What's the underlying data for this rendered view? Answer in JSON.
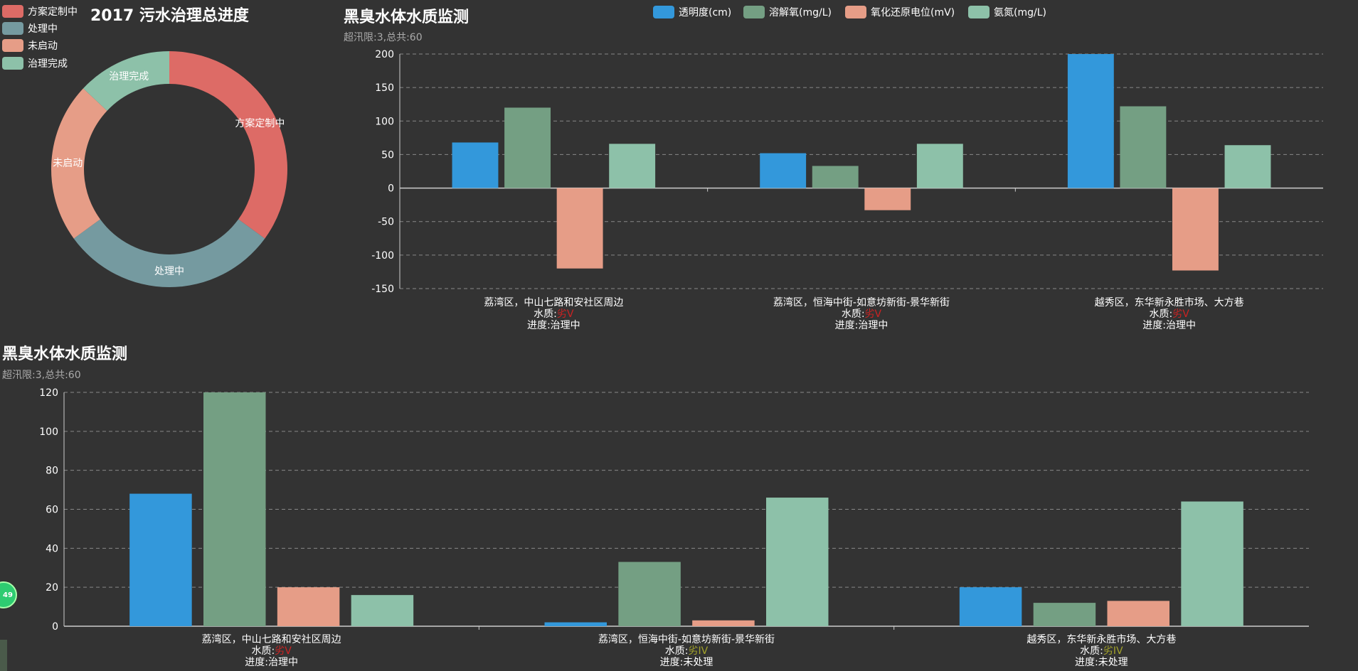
{
  "colors": {
    "series": [
      "#3398DB",
      "#749f83",
      "#e69d87",
      "#8dc1a9"
    ],
    "donut": [
      "#dd6b66",
      "#759aa0",
      "#e69d87",
      "#8dc1a9"
    ],
    "grid": "#888888",
    "axis": "#cccccc",
    "red": "#cc2222",
    "olive": "#a3a32a"
  },
  "donut_legend": [
    {
      "label": "方案定制中"
    },
    {
      "label": "处理中"
    },
    {
      "label": "未启动"
    },
    {
      "label": "治理完成"
    }
  ],
  "top_legend": [
    {
      "label": "透明度(cm)"
    },
    {
      "label": "溶解氧(mg/L)"
    },
    {
      "label": "氧化还原电位(mV)"
    },
    {
      "label": "氨氮(mg/L)"
    }
  ],
  "badge": "49",
  "chart_data": [
    {
      "type": "pie",
      "title": "2017 污水治理总进度",
      "donut": true,
      "slices": [
        {
          "label": "方案定制中",
          "value": 35
        },
        {
          "label": "处理中",
          "value": 30
        },
        {
          "label": "未启动",
          "value": 22
        },
        {
          "label": "治理完成",
          "value": 13
        }
      ]
    },
    {
      "type": "bar",
      "title": "黑臭水体水质监测",
      "subtitle": "超汛限:3,总共:60",
      "ylim": [
        -150,
        200
      ],
      "yticks": [
        200,
        150,
        100,
        50,
        0,
        -50,
        -100,
        -150
      ],
      "categories": [
        {
          "name": "荔湾区，中山七路和安社区周边",
          "quality_prefix": "水质:",
          "quality": "劣V",
          "quality_color": "red",
          "progress": "进度:治理中"
        },
        {
          "name": "荔湾区，恒海中街-如意坊新街-景华新街",
          "quality_prefix": "水质:",
          "quality": "劣V",
          "quality_color": "red",
          "progress": "进度:治理中"
        },
        {
          "name": "越秀区，东华新永胜市场、大方巷",
          "quality_prefix": "水质:",
          "quality": "劣V",
          "quality_color": "red",
          "progress": "进度:治理中"
        }
      ],
      "series": [
        {
          "name": "透明度(cm)",
          "values": [
            68,
            52,
            200
          ]
        },
        {
          "name": "溶解氧(mg/L)",
          "values": [
            120,
            33,
            122
          ]
        },
        {
          "name": "氧化还原电位(mV)",
          "values": [
            -120,
            -33,
            -123
          ]
        },
        {
          "name": "氨氮(mg/L)",
          "values": [
            66,
            66,
            64
          ]
        }
      ]
    },
    {
      "type": "bar",
      "title": "黑臭水体水质监测",
      "subtitle": "超汛限:3,总共:60",
      "ylim": [
        0,
        120
      ],
      "yticks": [
        120,
        100,
        80,
        60,
        40,
        20,
        0
      ],
      "categories": [
        {
          "name": "荔湾区，中山七路和安社区周边",
          "quality_prefix": "水质:",
          "quality": "劣V",
          "quality_color": "red",
          "progress": "进度:治理中"
        },
        {
          "name": "荔湾区，恒海中街-如意坊新街-景华新街",
          "quality_prefix": "水质:",
          "quality": "劣IV",
          "quality_color": "olive",
          "progress": "进度:未处理"
        },
        {
          "name": "越秀区，东华新永胜市场、大方巷",
          "quality_prefix": "水质:",
          "quality": "劣IV",
          "quality_color": "olive",
          "progress": "进度:未处理"
        }
      ],
      "series": [
        {
          "name": "透明度(cm)",
          "values": [
            68,
            2,
            20
          ]
        },
        {
          "name": "溶解氧(mg/L)",
          "values": [
            120,
            33,
            12
          ]
        },
        {
          "name": "氧化还原电位(mV)",
          "values": [
            20,
            3,
            13
          ]
        },
        {
          "name": "氨氮(mg/L)",
          "values": [
            16,
            66,
            64
          ]
        }
      ]
    }
  ]
}
